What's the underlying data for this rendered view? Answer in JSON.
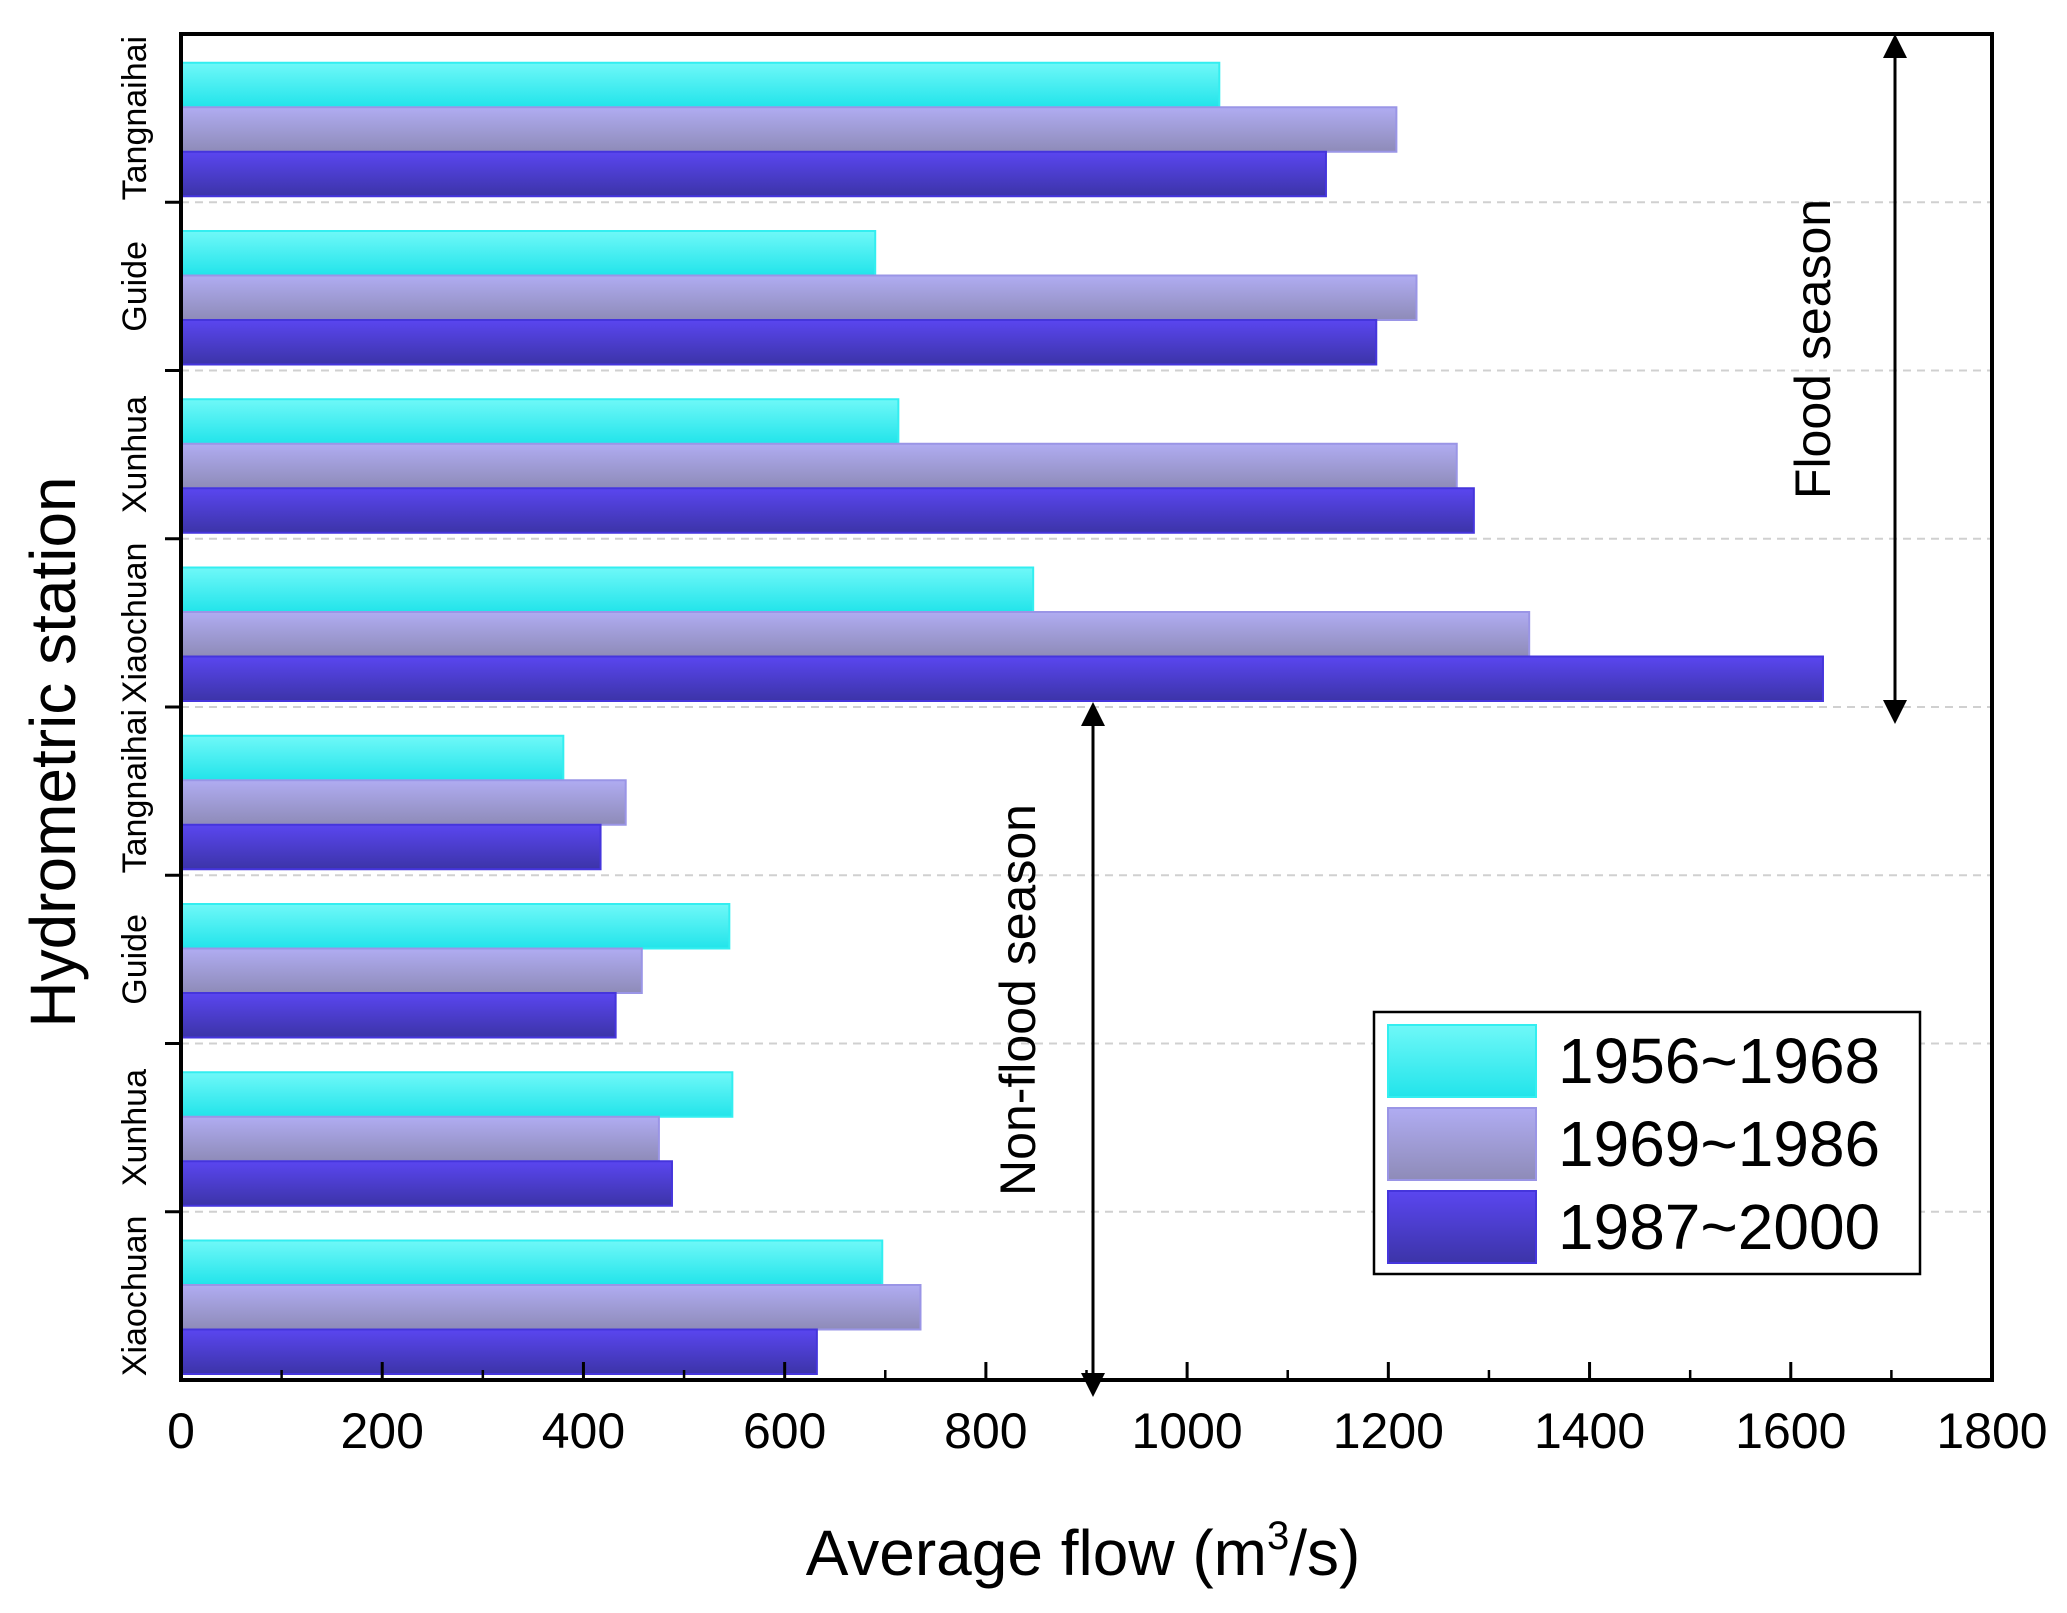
{
  "chart_data": {
    "type": "bar",
    "orientation": "horizontal",
    "xlabel_main": "Average flow (m",
    "xlabel_sup": "3",
    "xlabel_end": "/s)",
    "ylabel": "Hydrometric station",
    "xlim": [
      0,
      1800
    ],
    "xticks": [
      "0",
      "200",
      "400",
      "600",
      "800",
      "1000",
      "1200",
      "1400",
      "1600",
      "1800"
    ],
    "categories": [
      "Xiaochuan",
      "Xunhua",
      "Guide",
      "Tangnaihai",
      "Xiaochuan",
      "Xunhua",
      "Guide",
      "Tangnaihai"
    ],
    "series": [
      {
        "name": "1956~1968",
        "color": "#33eef0",
        "values": [
          697,
          548,
          545,
          380,
          847,
          713,
          690,
          1032
        ]
      },
      {
        "name": "1969~1986",
        "color": "#9a95e6",
        "values": [
          735,
          475,
          458,
          442,
          1340,
          1268,
          1228,
          1208
        ]
      },
      {
        "name": "1987~2000",
        "color": "#4535dc",
        "values": [
          632,
          488,
          432,
          417,
          1632,
          1285,
          1188,
          1138
        ]
      }
    ],
    "annotations": {
      "flood": "Flood season",
      "non_flood": "Non-flood season"
    },
    "gridlines": "dashed, horizontal",
    "legend_position": "bottom-right"
  }
}
